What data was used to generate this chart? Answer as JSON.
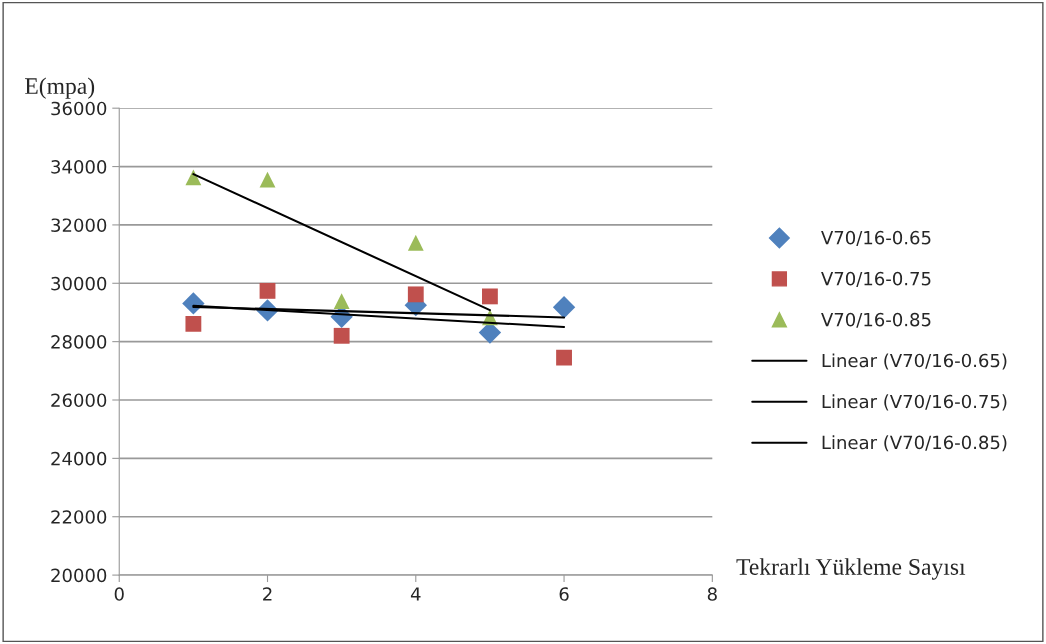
{
  "chart_data": {
    "type": "scatter",
    "ylabel": "E(mpa)",
    "xlabel": "Tekrarlı Yükleme Sayısı",
    "xlim": [
      0,
      8
    ],
    "xticks": [
      0,
      2,
      4,
      6,
      8
    ],
    "ylim": [
      20000,
      36000
    ],
    "yticks": [
      20000,
      22000,
      24000,
      26000,
      28000,
      30000,
      32000,
      34000,
      36000
    ],
    "grid": "y",
    "legend": "right",
    "series": [
      {
        "name": "V70/16-0.65",
        "marker": "diamond",
        "color": "#4f81bd",
        "x": [
          1,
          2,
          3,
          4,
          5,
          6
        ],
        "values": [
          29310,
          29070,
          28850,
          29250,
          28310,
          29180
        ]
      },
      {
        "name": "V70/16-0.75",
        "marker": "square",
        "color": "#c0504d",
        "x": [
          1,
          2,
          3,
          4,
          5,
          6
        ],
        "values": [
          28610,
          29740,
          28200,
          29620,
          29550,
          27450
        ]
      },
      {
        "name": "V70/16-0.85",
        "marker": "triangle",
        "color": "#9bbb59",
        "x": [
          1,
          2,
          3,
          4,
          5
        ],
        "values": [
          33630,
          33550,
          29390,
          31390,
          28830
        ]
      },
      {
        "name": "Linear (V70/16-0.65)",
        "type": "line",
        "marker": "none",
        "line_style": "solid",
        "color": "#000000",
        "x": [
          1,
          6
        ],
        "values": [
          29190,
          28830
        ]
      },
      {
        "name": "Linear (V70/16-0.75)",
        "type": "line",
        "marker": "none",
        "line_style": "solid",
        "color": "#000000",
        "x": [
          1,
          6
        ],
        "values": [
          29230,
          28500
        ]
      },
      {
        "name": "Linear (V70/16-0.85)",
        "type": "line",
        "marker": "none",
        "line_style": "solid",
        "color": "#000000",
        "x": [
          1,
          5
        ],
        "values": [
          33740,
          29080
        ]
      }
    ]
  }
}
